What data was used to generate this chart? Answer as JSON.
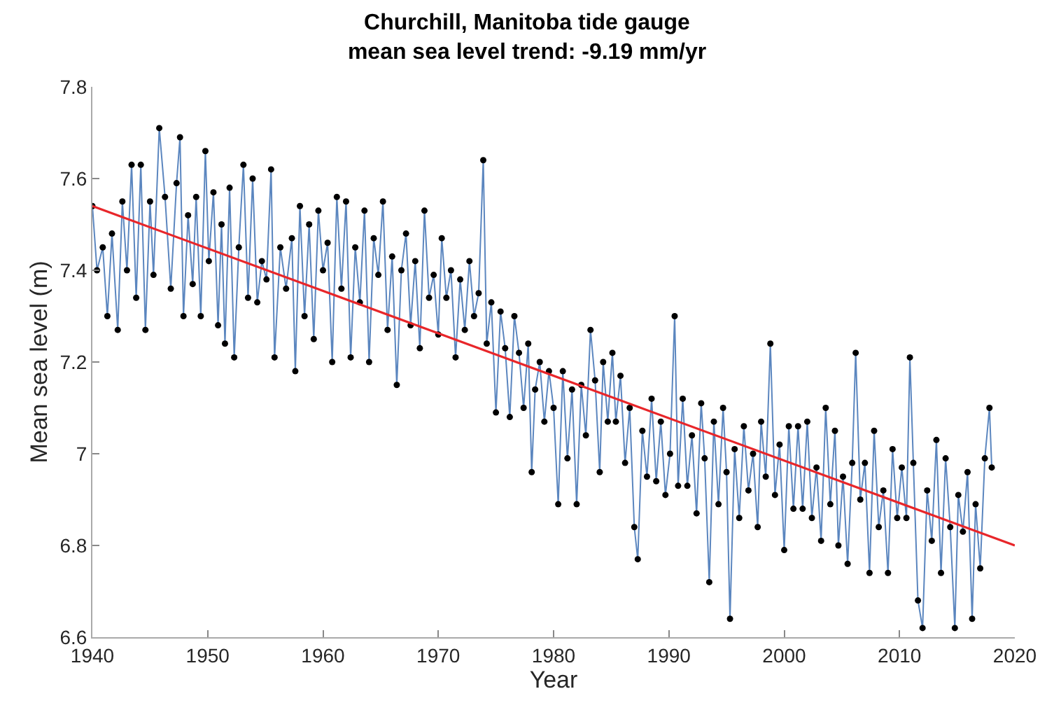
{
  "chart_data": {
    "type": "line",
    "title": "Churchill, Manitoba tide gauge\nmean sea level trend: -9.19 mm/yr",
    "xlabel": "Year",
    "ylabel": "Mean sea level (m)",
    "xlim": [
      1940,
      2020
    ],
    "xticks": [
      1940,
      1950,
      1960,
      1970,
      1980,
      1990,
      2000,
      2010,
      2020
    ],
    "ylim": [
      6.6,
      7.8
    ],
    "yticks": [
      6.6,
      6.8,
      7,
      7.2,
      7.4,
      7.6,
      7.8
    ],
    "series": [
      {
        "marker": "circle",
        "color": "#5b86bf",
        "x": [
          1940.0,
          1940.4,
          1940.9,
          1941.3,
          1941.7,
          1942.2,
          1942.6,
          1943.0,
          1943.4,
          1943.8,
          1944.2,
          1944.6,
          1945.0,
          1945.3,
          1945.8,
          1946.3,
          1946.8,
          1947.3,
          1947.6,
          1947.9,
          1948.3,
          1948.7,
          1949.0,
          1949.4,
          1949.8,
          1950.1,
          1950.5,
          1950.9,
          1951.2,
          1951.5,
          1951.9,
          1952.3,
          1952.7,
          1953.1,
          1953.5,
          1953.9,
          1954.3,
          1954.7,
          1955.1,
          1955.5,
          1955.8,
          1956.3,
          1956.8,
          1957.3,
          1957.6,
          1958.0,
          1958.4,
          1958.8,
          1959.2,
          1959.6,
          1960.0,
          1960.4,
          1960.8,
          1961.2,
          1961.6,
          1962.0,
          1962.4,
          1962.8,
          1963.2,
          1963.6,
          1964.0,
          1964.4,
          1964.8,
          1965.2,
          1965.6,
          1966.0,
          1966.4,
          1966.8,
          1967.2,
          1967.6,
          1968.0,
          1968.4,
          1968.8,
          1969.2,
          1969.6,
          1970.0,
          1970.3,
          1970.7,
          1971.1,
          1971.5,
          1971.9,
          1972.3,
          1972.7,
          1973.1,
          1973.5,
          1973.9,
          1974.2,
          1974.6,
          1975.0,
          1975.4,
          1975.8,
          1976.2,
          1976.6,
          1977.0,
          1977.4,
          1977.8,
          1978.1,
          1978.4,
          1978.8,
          1979.2,
          1979.6,
          1980.0,
          1980.4,
          1980.8,
          1981.2,
          1981.6,
          1982.0,
          1982.4,
          1982.8,
          1983.2,
          1983.6,
          1984.0,
          1984.3,
          1984.7,
          1985.1,
          1985.4,
          1985.8,
          1986.2,
          1986.6,
          1987.0,
          1987.3,
          1987.7,
          1988.1,
          1988.5,
          1988.9,
          1989.3,
          1989.7,
          1990.1,
          1990.5,
          1990.8,
          1991.2,
          1991.6,
          1992.0,
          1992.4,
          1992.8,
          1993.1,
          1993.5,
          1993.9,
          1994.3,
          1994.7,
          1995.0,
          1995.3,
          1995.7,
          1996.1,
          1996.5,
          1996.9,
          1997.3,
          1997.7,
          1998.0,
          1998.4,
          1998.8,
          1999.2,
          1999.6,
          2000.0,
          2000.4,
          2000.8,
          2001.2,
          2001.6,
          2002.0,
          2002.4,
          2002.8,
          2003.2,
          2003.6,
          2004.0,
          2004.4,
          2004.7,
          2005.1,
          2005.5,
          2005.9,
          2006.2,
          2006.6,
          2007.0,
          2007.4,
          2007.8,
          2008.2,
          2008.6,
          2009.0,
          2009.4,
          2009.8,
          2010.2,
          2010.6,
          2010.9,
          2011.2,
          2011.6,
          2012.0,
          2012.4,
          2012.8,
          2013.2,
          2013.6,
          2014.0,
          2014.4,
          2014.8,
          2015.1,
          2015.5,
          2015.9,
          2016.3,
          2016.6,
          2017.0,
          2017.4,
          2017.8,
          2018.0
        ],
        "values": [
          7.54,
          7.4,
          7.45,
          7.3,
          7.48,
          7.27,
          7.55,
          7.4,
          7.63,
          7.34,
          7.63,
          7.27,
          7.55,
          7.39,
          7.71,
          7.56,
          7.36,
          7.59,
          7.69,
          7.3,
          7.52,
          7.37,
          7.56,
          7.3,
          7.66,
          7.42,
          7.57,
          7.28,
          7.5,
          7.24,
          7.58,
          7.21,
          7.45,
          7.63,
          7.34,
          7.6,
          7.33,
          7.42,
          7.38,
          7.62,
          7.21,
          7.45,
          7.36,
          7.47,
          7.18,
          7.54,
          7.3,
          7.5,
          7.25,
          7.53,
          7.4,
          7.46,
          7.2,
          7.56,
          7.36,
          7.55,
          7.21,
          7.45,
          7.33,
          7.53,
          7.2,
          7.47,
          7.39,
          7.55,
          7.27,
          7.43,
          7.15,
          7.4,
          7.48,
          7.28,
          7.42,
          7.23,
          7.53,
          7.34,
          7.39,
          7.26,
          7.47,
          7.34,
          7.4,
          7.21,
          7.38,
          7.27,
          7.42,
          7.3,
          7.35,
          7.64,
          7.24,
          7.33,
          7.09,
          7.31,
          7.23,
          7.08,
          7.3,
          7.22,
          7.1,
          7.24,
          6.96,
          7.14,
          7.2,
          7.07,
          7.18,
          7.1,
          6.89,
          7.18,
          6.99,
          7.14,
          6.89,
          7.15,
          7.04,
          7.27,
          7.16,
          6.96,
          7.2,
          7.07,
          7.22,
          7.07,
          7.17,
          6.98,
          7.1,
          6.84,
          6.77,
          7.05,
          6.95,
          7.12,
          6.94,
          7.07,
          6.91,
          7.0,
          7.3,
          6.93,
          7.12,
          6.93,
          7.04,
          6.87,
          7.11,
          6.99,
          6.72,
          7.07,
          6.89,
          7.1,
          6.96,
          6.64,
          7.01,
          6.86,
          7.06,
          6.92,
          7.0,
          6.84,
          7.07,
          6.95,
          7.24,
          6.91,
          7.02,
          6.79,
          7.06,
          6.88,
          7.06,
          6.88,
          7.07,
          6.86,
          6.97,
          6.81,
          7.1,
          6.89,
          7.05,
          6.8,
          6.95,
          6.76,
          6.98,
          7.22,
          6.9,
          6.98,
          6.74,
          7.05,
          6.84,
          6.92,
          6.74,
          7.01,
          6.86,
          6.97,
          6.86,
          7.21,
          6.98,
          6.68,
          6.62,
          6.92,
          6.81,
          7.03,
          6.74,
          6.99,
          6.84,
          6.62,
          6.91,
          6.83,
          6.96,
          6.64,
          6.89,
          6.75,
          6.99,
          7.1,
          6.97
        ]
      },
      {
        "marker": "none",
        "color": "#e8262a",
        "x": [
          1940,
          2020
        ],
        "values": [
          7.54,
          6.8
        ]
      }
    ]
  }
}
